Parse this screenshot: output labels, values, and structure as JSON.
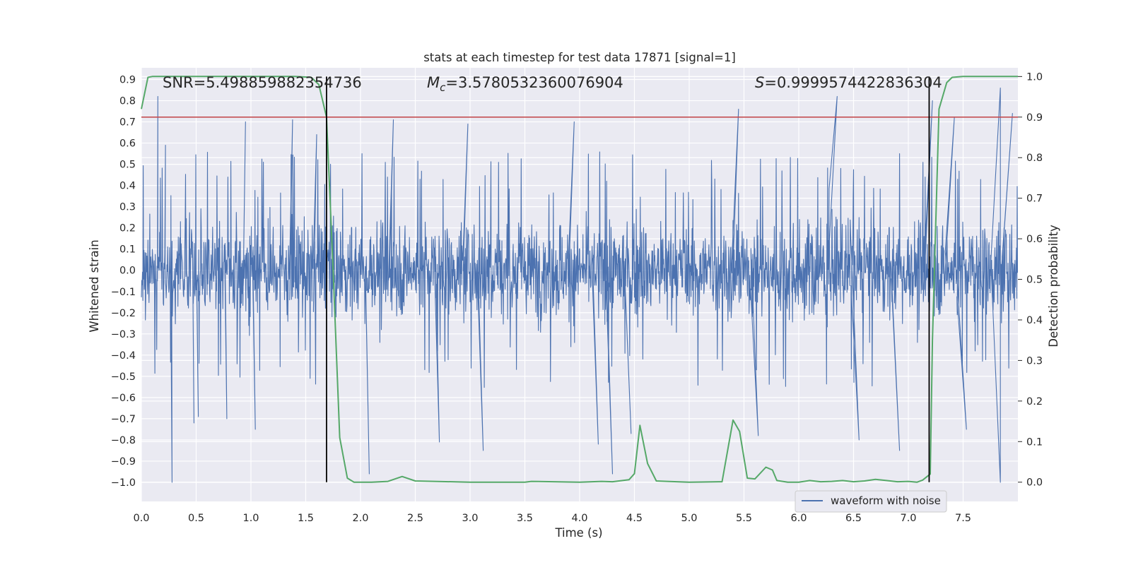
{
  "chart_data": {
    "type": "line",
    "title": "stats at each timestep for test data 17871 [signal=1]",
    "xlabel": "Time (s)",
    "ylabel": "Whitened strain",
    "y2label": "Detection probability",
    "xlim": [
      0,
      8
    ],
    "ylim": [
      -1.09,
      0.955
    ],
    "y2lim": [
      -0.0475,
      1.0215
    ],
    "xticks": [
      "0.0",
      "0.5",
      "1.0",
      "1.5",
      "2.0",
      "2.5",
      "3.0",
      "3.5",
      "4.0",
      "4.5",
      "5.0",
      "5.5",
      "6.0",
      "6.5",
      "7.0",
      "7.5"
    ],
    "yticks": [
      "0.9",
      "0.8",
      "0.7",
      "0.6",
      "0.5",
      "0.4",
      "0.3",
      "0.2",
      "0.1",
      "0.0",
      "−0.1",
      "−0.2",
      "−0.3",
      "−0.4",
      "−0.5",
      "−0.6",
      "−0.7",
      "−0.8",
      "−0.9",
      "−1.0"
    ],
    "y2ticks": [
      "1.0",
      "0.9",
      "0.8",
      "0.7",
      "0.6",
      "0.5",
      "0.4",
      "0.3",
      "0.2",
      "0.1",
      "0.0"
    ],
    "grid": true,
    "legend": {
      "position": "lower-right",
      "entries": [
        "waveform with noise"
      ]
    },
    "annotations": {
      "snr": "SNR=5.498859882354736",
      "mc_symbol": "M",
      "mc_sub": "c",
      "mc_value": "=3.5780532360076904",
      "s_symbol": "S",
      "s_value": "=0.9999574422836304"
    },
    "threshold": {
      "axis": "y2",
      "value": 0.9
    },
    "vlines": [
      1.69,
      7.19
    ],
    "series": [
      {
        "name": "waveform with noise",
        "kind": "strain-noise",
        "t_end": 8.0,
        "amplitude_envelope": {
          "min": -1.0,
          "max": 0.87
        },
        "peaks": [
          {
            "t": 0.15,
            "v": 0.82
          },
          {
            "t": 0.28,
            "v": -1.0
          },
          {
            "t": 0.22,
            "v": 0.59
          },
          {
            "t": 0.48,
            "v": -0.72
          },
          {
            "t": 0.52,
            "v": -0.69
          },
          {
            "t": 0.78,
            "v": -0.7
          },
          {
            "t": 0.95,
            "v": 0.7
          },
          {
            "t": 1.04,
            "v": -0.75
          },
          {
            "t": 1.38,
            "v": 0.71
          },
          {
            "t": 1.6,
            "v": 0.64
          },
          {
            "t": 2.08,
            "v": -0.96
          },
          {
            "t": 2.3,
            "v": 0.71
          },
          {
            "t": 2.72,
            "v": -0.81
          },
          {
            "t": 2.98,
            "v": 0.69
          },
          {
            "t": 3.12,
            "v": -0.85
          },
          {
            "t": 3.95,
            "v": 0.7
          },
          {
            "t": 4.17,
            "v": -0.82
          },
          {
            "t": 4.3,
            "v": -0.96
          },
          {
            "t": 4.47,
            "v": -0.77
          },
          {
            "t": 5.45,
            "v": 0.76
          },
          {
            "t": 5.63,
            "v": -0.78
          },
          {
            "t": 6.35,
            "v": 0.82
          },
          {
            "t": 6.55,
            "v": -0.8
          },
          {
            "t": 6.92,
            "v": -0.85
          },
          {
            "t": 7.22,
            "v": 0.8
          },
          {
            "t": 7.42,
            "v": 0.72
          },
          {
            "t": 7.84,
            "v": 0.86
          },
          {
            "t": 7.84,
            "v": -1.0
          },
          {
            "t": 7.95,
            "v": 0.74
          },
          {
            "t": 7.53,
            "v": -0.75
          }
        ],
        "color": "#4c72b0"
      },
      {
        "name": "detection probability",
        "axis": "y2",
        "color": "#55a868",
        "x": [
          0.0,
          0.06,
          0.1,
          0.2,
          0.4,
          0.6,
          0.8,
          1.0,
          1.2,
          1.4,
          1.55,
          1.62,
          1.69,
          1.75,
          1.81,
          1.88,
          1.94,
          2.0,
          2.1,
          2.25,
          2.38,
          2.5,
          3.0,
          3.5,
          3.56,
          4.0,
          4.2,
          4.3,
          4.45,
          4.5,
          4.55,
          4.62,
          4.7,
          4.8,
          5.0,
          5.3,
          5.4,
          5.46,
          5.53,
          5.6,
          5.7,
          5.76,
          5.8,
          5.9,
          6.0,
          6.1,
          6.2,
          6.3,
          6.4,
          6.5,
          6.6,
          6.7,
          6.8,
          6.9,
          7.0,
          7.08,
          7.13,
          7.2,
          7.22,
          7.28,
          7.35,
          7.4,
          7.5,
          7.6,
          7.8,
          8.0
        ],
        "y": [
          0.92,
          0.998,
          1.0,
          1.0,
          1.0,
          1.0,
          1.0,
          1.0,
          1.0,
          1.0,
          0.998,
          0.98,
          0.9,
          0.52,
          0.11,
          0.01,
          0.0,
          0.0,
          0.0,
          0.002,
          0.014,
          0.003,
          0.0,
          0.0,
          0.002,
          0.0,
          0.002,
          0.001,
          0.006,
          0.021,
          0.14,
          0.046,
          0.003,
          0.002,
          0.0,
          0.001,
          0.153,
          0.125,
          0.01,
          0.008,
          0.037,
          0.03,
          0.004,
          0.0,
          0.0,
          0.004,
          0.001,
          0.002,
          0.004,
          0.001,
          0.003,
          0.007,
          0.004,
          0.001,
          0.002,
          0.0,
          0.005,
          0.02,
          0.35,
          0.92,
          0.985,
          0.998,
          1.0,
          1.0,
          1.0,
          1.0
        ]
      }
    ],
    "colors": {
      "plot_bg": "#eaeaf2",
      "grid": "#ffffff",
      "strain": "#4c72b0",
      "probability": "#55a868",
      "threshold": "#c44e52",
      "vline": "#000000"
    }
  }
}
